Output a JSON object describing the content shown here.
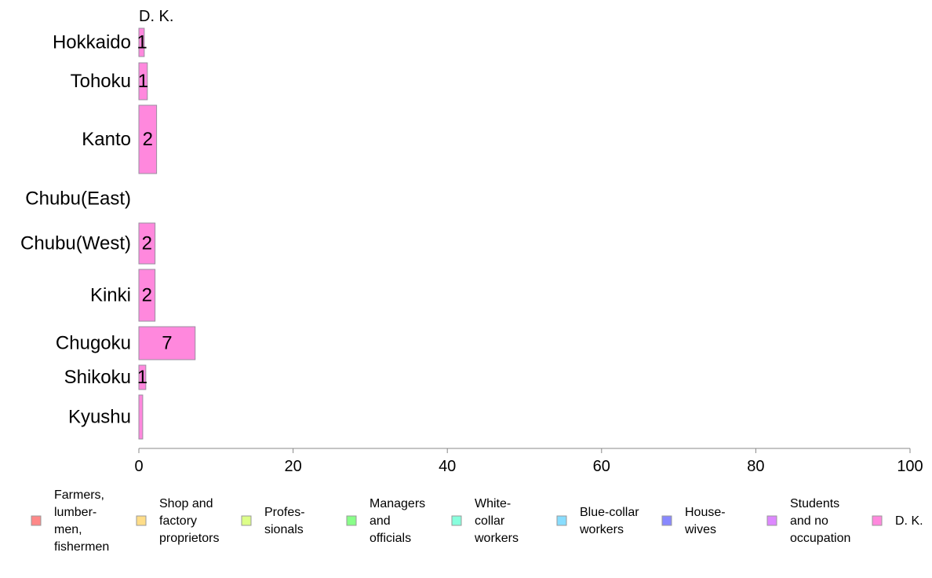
{
  "chart_data": {
    "type": "bar",
    "orientation": "horizontal",
    "column_title": "D. K.",
    "categories": [
      "Hokkaido",
      "Tohoku",
      "Kanto",
      "Chubu(East)",
      "Chubu(West)",
      "Kinki",
      "Chugoku",
      "Shikoku",
      "Kyushu"
    ],
    "series": [
      {
        "name": "D. K.",
        "color": "#ff88dd",
        "values": [
          0.7,
          1.1,
          2.3,
          0,
          2.1,
          2.1,
          7.3,
          0.9,
          0.5
        ],
        "labels": [
          "1",
          "1",
          "2",
          "",
          "2",
          "2",
          "7",
          "1",
          ""
        ]
      }
    ],
    "xlim": [
      0,
      100
    ],
    "xticks": [
      "0",
      "20",
      "40",
      "60",
      "80",
      "100"
    ],
    "xlabel": "",
    "ylabel": "",
    "grid": false,
    "legend_position": "bottom",
    "legend": [
      {
        "lines": [
          "Farmers,",
          "lumber-",
          "men,",
          "fishermen"
        ],
        "color": "#ff8888"
      },
      {
        "lines": [
          "Shop and",
          "factory",
          "proprietors"
        ],
        "color": "#ffdd88"
      },
      {
        "lines": [
          "Profes-",
          "sionals"
        ],
        "color": "#ddff88"
      },
      {
        "lines": [
          "Managers",
          "and",
          "officials"
        ],
        "color": "#88ff88"
      },
      {
        "lines": [
          "White-",
          "collar",
          "workers"
        ],
        "color": "#88ffdd"
      },
      {
        "lines": [
          "Blue-collar",
          "workers"
        ],
        "color": "#88ddff"
      },
      {
        "lines": [
          "House-",
          "wives"
        ],
        "color": "#8888ff"
      },
      {
        "lines": [
          "Students",
          "and no",
          "occupation"
        ],
        "color": "#dd88ff"
      },
      {
        "lines": [
          "D. K."
        ],
        "color": "#ff88dd"
      }
    ]
  }
}
